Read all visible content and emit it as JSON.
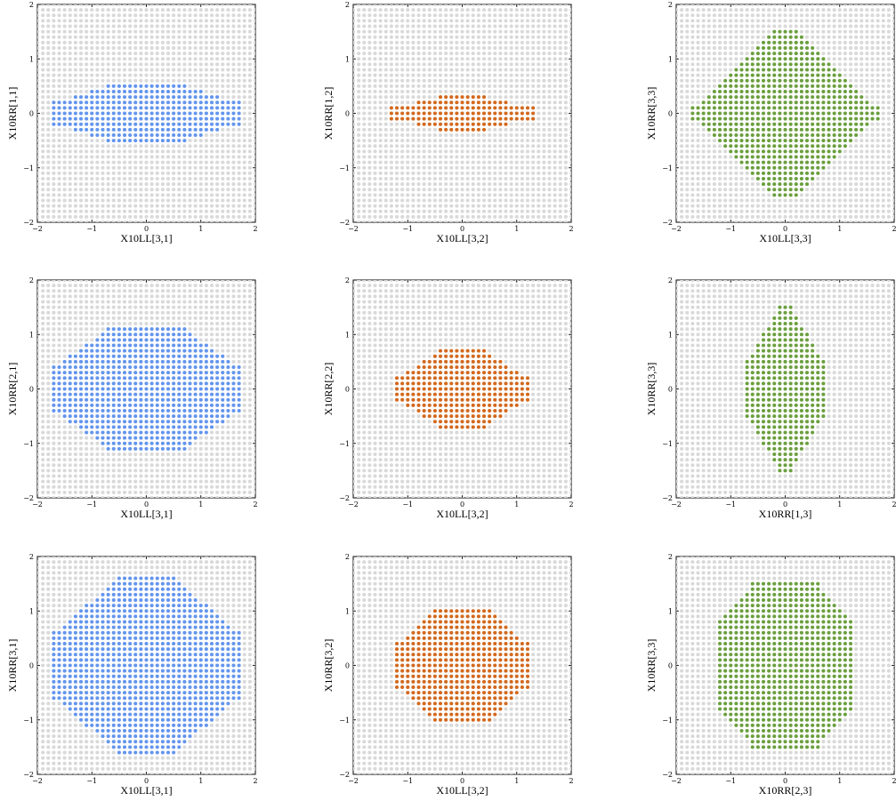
{
  "figure": {
    "background_dot_color": "#d9d9d9",
    "grid_step": 0.1,
    "grid_range": [
      -2,
      2
    ],
    "tick_values": [
      -2,
      -1,
      0,
      1,
      2
    ],
    "tick_labels": [
      "−2",
      "−1",
      "0",
      "1",
      "2"
    ]
  },
  "chart_data": [
    {
      "type": "scatter",
      "title": "",
      "xlabel": "X10LL[3,1]",
      "ylabel": "X10RR[1,1]",
      "xlim": [
        -2,
        2
      ],
      "ylim": [
        -2,
        2
      ],
      "color": "#6495ed",
      "region": {
        "shape": "octagon",
        "x_extent": 1.7,
        "y_extent": 0.5,
        "x_flat": 0.7,
        "y_flat": 0.2
      }
    },
    {
      "type": "scatter",
      "title": "",
      "xlabel": "X10LL[3,2]",
      "ylabel": "X10RR[1,2]",
      "xlim": [
        -2,
        2
      ],
      "ylim": [
        -2,
        2
      ],
      "color": "#d2691e",
      "region": {
        "shape": "octagon",
        "x_extent": 1.3,
        "y_extent": 0.3,
        "x_flat": 0.4,
        "y_flat": 0.1
      }
    },
    {
      "type": "scatter",
      "title": "",
      "xlabel": "X10LL[3,3]",
      "ylabel": "X10RR[3,3]",
      "xlim": [
        -2,
        2
      ],
      "ylim": [
        -2,
        2
      ],
      "color": "#6b9f3f",
      "region": {
        "shape": "diamond",
        "x_extent": 1.7,
        "y_extent": 1.5,
        "x_flat": 0.2,
        "y_flat": 0.1
      }
    },
    {
      "type": "scatter",
      "title": "",
      "xlabel": "X10LL[3,1]",
      "ylabel": "X10RR[2,1]",
      "xlim": [
        -2,
        2
      ],
      "ylim": [
        -2,
        2
      ],
      "color": "#6495ed",
      "region": {
        "shape": "octagon",
        "x_extent": 1.7,
        "y_extent": 1.1,
        "x_flat": 0.7,
        "y_flat": 0.4
      }
    },
    {
      "type": "scatter",
      "title": "",
      "xlabel": "X10LL[3,2]",
      "ylabel": "X10RR[2,2]",
      "xlim": [
        -2,
        2
      ],
      "ylim": [
        -2,
        2
      ],
      "color": "#d2691e",
      "region": {
        "shape": "octagon",
        "x_extent": 1.2,
        "y_extent": 0.7,
        "x_flat": 0.4,
        "y_flat": 0.2
      }
    },
    {
      "type": "scatter",
      "title": "",
      "xlabel": "X10RR[1,3]",
      "ylabel": "X10RR[3,3]",
      "xlim": [
        -2,
        2
      ],
      "ylim": [
        -2,
        2
      ],
      "color": "#6b9f3f",
      "region": {
        "shape": "octagon",
        "x_extent": 0.7,
        "y_extent": 1.5,
        "x_flat": 0.1,
        "y_flat": 0.5
      }
    },
    {
      "type": "scatter",
      "title": "",
      "xlabel": "X10LL[3,1]",
      "ylabel": "X10RR[3,1]",
      "xlim": [
        -2,
        2
      ],
      "ylim": [
        -2,
        2
      ],
      "color": "#6495ed",
      "region": {
        "shape": "octagon",
        "x_extent": 1.7,
        "y_extent": 1.6,
        "x_flat": 0.5,
        "y_flat": 0.6
      }
    },
    {
      "type": "scatter",
      "title": "",
      "xlabel": "X10LL[3,2]",
      "ylabel": "X10RR[3,2]",
      "xlim": [
        -2,
        2
      ],
      "ylim": [
        -2,
        2
      ],
      "color": "#d2691e",
      "region": {
        "shape": "octagon",
        "x_extent": 1.2,
        "y_extent": 1.0,
        "x_flat": 0.5,
        "y_flat": 0.4
      }
    },
    {
      "type": "scatter",
      "title": "",
      "xlabel": "X10RR[2,3]",
      "ylabel": "X10RR[3,3]",
      "xlim": [
        -2,
        2
      ],
      "ylim": [
        -2,
        2
      ],
      "color": "#6b9f3f",
      "region": {
        "shape": "octagon",
        "x_extent": 1.2,
        "y_extent": 1.5,
        "x_flat": 0.6,
        "y_flat": 0.8
      }
    }
  ]
}
